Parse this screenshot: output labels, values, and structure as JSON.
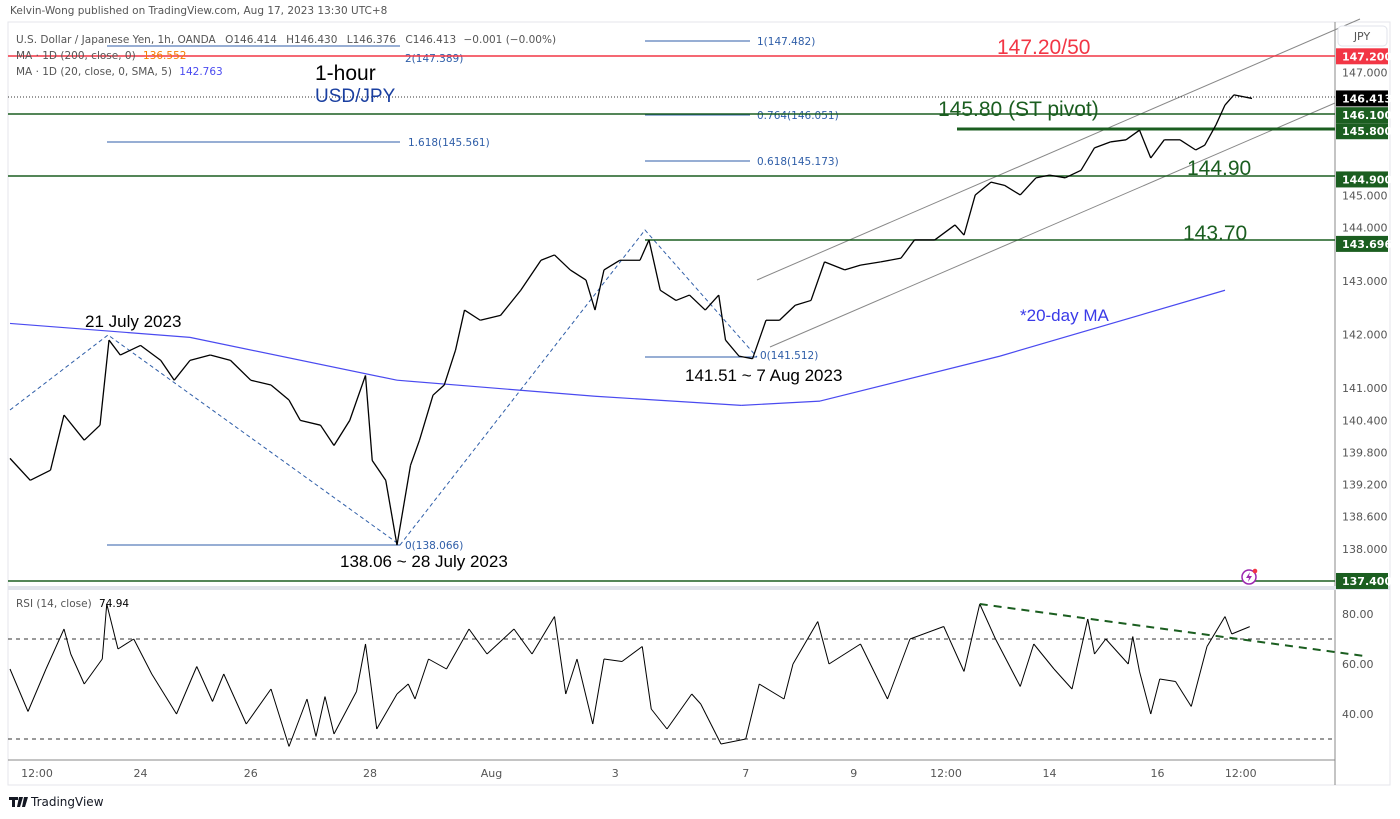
{
  "header": {
    "published": "Kelvin-Wong published on TradingView.com, Aug 17, 2023 13:30 UTC+8"
  },
  "legend": {
    "symbol": "U.S. Dollar / Japanese Yen, 1h, OANDA",
    "open": "O146.414",
    "high": "H146.430",
    "low": "L146.376",
    "close": "C146.413",
    "change": "−0.001 (−0.00%)",
    "ma200_label": "MA · 1D (200, close, 0)",
    "ma200_value": "136.552",
    "ma200_color": "#f57c00",
    "ma20_label": "MA · 1D (20, close, 0, SMA, 5)",
    "ma20_value": "142.763",
    "ma20_color": "#4a4af0"
  },
  "currency_button": "JPY",
  "footer": {
    "brand": "TradingView"
  },
  "annotations": {
    "timeframe": "1-hour",
    "pair": "USD/JPY",
    "resistance": "147.20/50",
    "pivot": "145.80 (ST pivot)",
    "support1": "144.90",
    "support2": "143.70",
    "high_label": "21 July 2023",
    "low_label": "138.06 ~ 28 July 2023",
    "low2_label": "141.51 ~ 7 Aug 2023",
    "ma_label": "*20-day MA"
  },
  "fib_labels": {
    "f2": "2(147.389)",
    "f1618": "1.618(145.561)",
    "f0a": "0(138.066)",
    "f1": "1(147.482)",
    "f0764": "0.764(146.051)",
    "f0618": "0.618(145.173)",
    "f0b": "0(141.512)"
  },
  "colors": {
    "resistance": "#f23645",
    "support": "#1b5e20",
    "fib": "#2f5ea8",
    "ma": "#4a4af0",
    "price": "#000000",
    "last_price_bg": "#000000"
  },
  "chart_data": [
    {
      "type": "line",
      "title": "",
      "note_series": "hourly close (approximated from candlesticks)",
      "x_unit": "hourly bar index",
      "ylim": [
        136.9,
        147.8
      ],
      "grid": false,
      "time_ticks": [
        {
          "label": "12:00",
          "bar": 12
        },
        {
          "label": "24",
          "bar": 58
        },
        {
          "label": "26",
          "bar": 107
        },
        {
          "label": "28",
          "bar": 160
        },
        {
          "label": "Aug",
          "bar": 214
        },
        {
          "label": "3",
          "bar": 269
        },
        {
          "label": "7",
          "bar": 327
        },
        {
          "label": "9",
          "bar": 375
        },
        {
          "label": "12:00",
          "bar": 416
        },
        {
          "label": "14",
          "bar": 462
        },
        {
          "label": "16",
          "bar": 510
        },
        {
          "label": "12:00",
          "bar": 547
        }
      ],
      "price_ticks": [
        "147.000",
        "145.000",
        "144.000",
        "143.000",
        "142.000",
        "141.000",
        "140.400",
        "139.800",
        "139.200",
        "138.600",
        "138.000"
      ],
      "price_labels": [
        {
          "value": "147.200",
          "kind": "resistance"
        },
        {
          "value": "146.413",
          "kind": "last"
        },
        {
          "value": "146.100",
          "kind": "support"
        },
        {
          "value": "145.800",
          "kind": "support"
        },
        {
          "value": "144.900",
          "kind": "support"
        },
        {
          "value": "143.696",
          "kind": "support"
        },
        {
          "value": "137.400",
          "kind": "support"
        }
      ],
      "levels": [
        147.2,
        146.1,
        145.8,
        144.9,
        143.696,
        137.4
      ],
      "close": [
        [
          0,
          139.69
        ],
        [
          9,
          139.28
        ],
        [
          18,
          139.47
        ],
        [
          24,
          140.5
        ],
        [
          33,
          140.03
        ],
        [
          40,
          140.31
        ],
        [
          44,
          141.9
        ],
        [
          49,
          141.62
        ],
        [
          58,
          141.8
        ],
        [
          67,
          141.52
        ],
        [
          73,
          141.15
        ],
        [
          80,
          141.52
        ],
        [
          89,
          141.62
        ],
        [
          98,
          141.52
        ],
        [
          107,
          141.15
        ],
        [
          116,
          141.06
        ],
        [
          124,
          140.78
        ],
        [
          129,
          140.4
        ],
        [
          138,
          140.31
        ],
        [
          144,
          139.93
        ],
        [
          151,
          140.4
        ],
        [
          158,
          141.24
        ],
        [
          161,
          139.65
        ],
        [
          167,
          139.28
        ],
        [
          172,
          138.07
        ],
        [
          178,
          139.56
        ],
        [
          182,
          140.03
        ],
        [
          188,
          140.87
        ],
        [
          193,
          141.06
        ],
        [
          198,
          141.71
        ],
        [
          202,
          142.46
        ],
        [
          209,
          142.27
        ],
        [
          218,
          142.36
        ],
        [
          227,
          142.83
        ],
        [
          236,
          143.39
        ],
        [
          242,
          143.49
        ],
        [
          249,
          143.21
        ],
        [
          256,
          143.02
        ],
        [
          260,
          142.46
        ],
        [
          264,
          143.21
        ],
        [
          271,
          143.39
        ],
        [
          280,
          143.39
        ],
        [
          284,
          143.77
        ],
        [
          289,
          142.83
        ],
        [
          296,
          142.64
        ],
        [
          302,
          142.74
        ],
        [
          309,
          142.46
        ],
        [
          315,
          142.74
        ],
        [
          318,
          141.9
        ],
        [
          324,
          141.6
        ],
        [
          330,
          141.55
        ],
        [
          336,
          142.27
        ],
        [
          342,
          142.27
        ],
        [
          349,
          142.55
        ],
        [
          356,
          142.64
        ],
        [
          362,
          143.36
        ],
        [
          371,
          143.21
        ],
        [
          378,
          143.3
        ],
        [
          387,
          143.36
        ],
        [
          396,
          143.43
        ],
        [
          402,
          143.77
        ],
        [
          411,
          143.77
        ],
        [
          420,
          144.05
        ],
        [
          424,
          143.86
        ],
        [
          429,
          144.61
        ],
        [
          436,
          144.85
        ],
        [
          442,
          144.79
        ],
        [
          449,
          144.61
        ],
        [
          456,
          144.93
        ],
        [
          462,
          144.98
        ],
        [
          469,
          144.93
        ],
        [
          476,
          145.07
        ],
        [
          482,
          145.49
        ],
        [
          489,
          145.6
        ],
        [
          496,
          145.64
        ],
        [
          502,
          145.82
        ],
        [
          507,
          145.3
        ],
        [
          513,
          145.64
        ],
        [
          520,
          145.64
        ],
        [
          527,
          145.45
        ],
        [
          531,
          145.54
        ],
        [
          536,
          145.92
        ],
        [
          540,
          146.29
        ],
        [
          544,
          146.48
        ],
        [
          552,
          146.413
        ]
      ],
      "ma20": {
        "name": "*20-day MA",
        "points": [
          [
            0,
            142.21
          ],
          [
            80,
            141.95
          ],
          [
            172,
            141.15
          ],
          [
            260,
            140.85
          ],
          [
            325,
            140.68
          ],
          [
            360,
            140.76
          ],
          [
            440,
            141.6
          ],
          [
            540,
            142.83
          ]
        ]
      },
      "swing_highs_lows": {
        "high": 141.95,
        "low1": 138.066,
        "peak": 143.89,
        "low2": 141.512
      }
    },
    {
      "type": "line",
      "title": "RSI (14, close)",
      "last_value": "74.94",
      "ylim": [
        20,
        90
      ],
      "y_ticks": [
        "80.00",
        "60.00",
        "40.00"
      ],
      "bands": [
        70,
        30
      ],
      "trendline": {
        "from": [
          431,
          84
        ],
        "to": [
          590,
          63
        ]
      },
      "values": [
        [
          0,
          58
        ],
        [
          8,
          41
        ],
        [
          16,
          58
        ],
        [
          24,
          74
        ],
        [
          27,
          64
        ],
        [
          33,
          52
        ],
        [
          41,
          62
        ],
        [
          43,
          84
        ],
        [
          48,
          66
        ],
        [
          55,
          70
        ],
        [
          63,
          56
        ],
        [
          74,
          40
        ],
        [
          83,
          59
        ],
        [
          90,
          45
        ],
        [
          95,
          56
        ],
        [
          105,
          36
        ],
        [
          116,
          50
        ],
        [
          124,
          27
        ],
        [
          132,
          46
        ],
        [
          136,
          31
        ],
        [
          140,
          47
        ],
        [
          144,
          32
        ],
        [
          154,
          49
        ],
        [
          158,
          68
        ],
        [
          163,
          34
        ],
        [
          172,
          48
        ],
        [
          177,
          52
        ],
        [
          180,
          46
        ],
        [
          186,
          62
        ],
        [
          194,
          58
        ],
        [
          204,
          74
        ],
        [
          212,
          64
        ],
        [
          224,
          74
        ],
        [
          232,
          64
        ],
        [
          242,
          79
        ],
        [
          247,
          48
        ],
        [
          252,
          62
        ],
        [
          259,
          36
        ],
        [
          264,
          62
        ],
        [
          272,
          61
        ],
        [
          281,
          67
        ],
        [
          285,
          42
        ],
        [
          292,
          34
        ],
        [
          303,
          48
        ],
        [
          307,
          44
        ],
        [
          316,
          28
        ],
        [
          327,
          30
        ],
        [
          333,
          52
        ],
        [
          344,
          46
        ],
        [
          348,
          60
        ],
        [
          359,
          77
        ],
        [
          364,
          60
        ],
        [
          378,
          68
        ],
        [
          390,
          46
        ],
        [
          400,
          70
        ],
        [
          415,
          75
        ],
        [
          424,
          57
        ],
        [
          431,
          84
        ],
        [
          438,
          70
        ],
        [
          449,
          51
        ],
        [
          455,
          68
        ],
        [
          464,
          58
        ],
        [
          472,
          50
        ],
        [
          479,
          78
        ],
        [
          482,
          64
        ],
        [
          487,
          70
        ],
        [
          497,
          60
        ],
        [
          499,
          71
        ],
        [
          502,
          57
        ],
        [
          507,
          40
        ],
        [
          511,
          54
        ],
        [
          518,
          53
        ],
        [
          525,
          43
        ],
        [
          532,
          67
        ],
        [
          540,
          79
        ],
        [
          543,
          72
        ],
        [
          551,
          74.94
        ]
      ]
    }
  ]
}
